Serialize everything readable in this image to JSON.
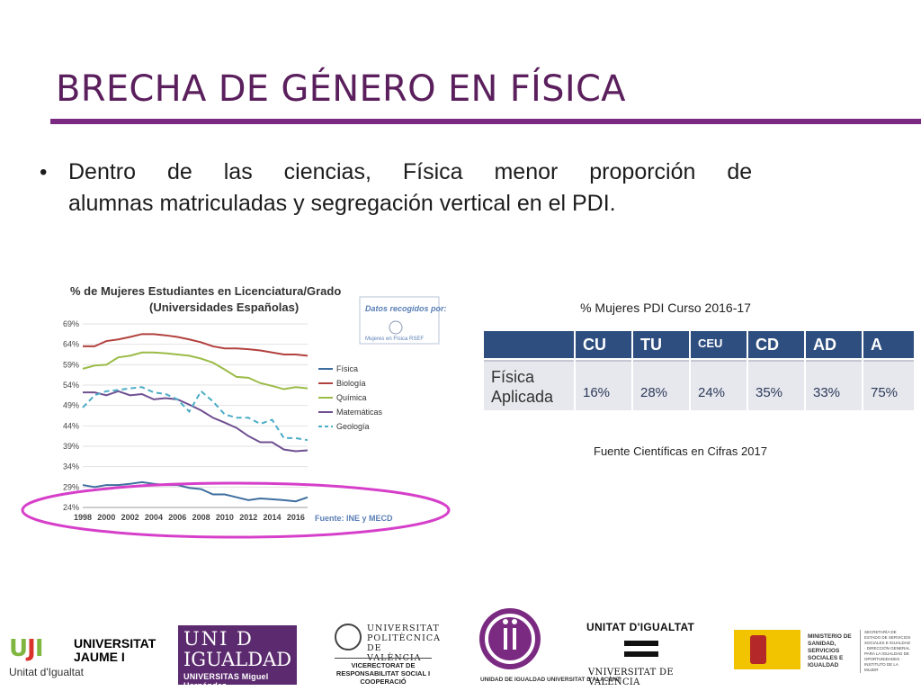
{
  "slide": {
    "title": "BRECHA DE GÉNERO EN FÍSICA",
    "bullet": {
      "symbol": "•",
      "line1": "Dentro de las ciencias, Física menor proporción de",
      "line2": "alumnas  matriculadas y segregación vertical en el PDI."
    }
  },
  "chart_data": {
    "type": "line",
    "title": "% de Mujeres Estudiantes en Licenciatura/Grado",
    "subtitle": "(Universidades Españolas)",
    "note_label": "Datos recogidos por:",
    "note_source": "Mujeres en Física RSEF",
    "source": "Fuente: INE y MECD",
    "ylim": [
      24,
      69
    ],
    "yticks": [
      "69%",
      "64%",
      "59%",
      "54%",
      "49%",
      "44%",
      "39%",
      "34%",
      "29%",
      "24%"
    ],
    "xticks": [
      "1998",
      "2000",
      "2002",
      "2004",
      "2006",
      "2008",
      "2010",
      "2012",
      "2014",
      "2016"
    ],
    "x": [
      1998,
      1999,
      2000,
      2001,
      2002,
      2003,
      2004,
      2005,
      2006,
      2007,
      2008,
      2009,
      2010,
      2011,
      2012,
      2013,
      2014,
      2015,
      2016,
      2017
    ],
    "legend_placement": "right",
    "series": [
      {
        "name": "Física",
        "color": "#3e6e9e",
        "dash": false,
        "values": [
          29.5,
          29.0,
          29.5,
          29.5,
          29.8,
          30.2,
          29.8,
          29.5,
          29.5,
          28.8,
          28.5,
          27.2,
          27.2,
          26.5,
          25.8,
          26.2,
          26.0,
          25.8,
          25.5,
          26.5
        ]
      },
      {
        "name": "Biología",
        "color": "#b2413e",
        "dash": false,
        "values": [
          63.5,
          63.5,
          64.8,
          65.2,
          65.8,
          66.5,
          66.5,
          66.2,
          65.8,
          65.2,
          64.5,
          63.5,
          63.0,
          63.0,
          62.8,
          62.5,
          62.0,
          61.5,
          61.5,
          61.2
        ]
      },
      {
        "name": "Química",
        "color": "#9bbb46",
        "dash": false,
        "values": [
          58.0,
          58.8,
          59.0,
          60.8,
          61.2,
          62.0,
          62.0,
          61.8,
          61.5,
          61.2,
          60.5,
          59.5,
          57.8,
          56.0,
          55.8,
          54.5,
          53.8,
          53.0,
          53.5,
          53.2
        ]
      },
      {
        "name": "Matemáticas",
        "color": "#6f4f91",
        "dash": false,
        "values": [
          52.2,
          52.2,
          51.5,
          52.5,
          51.5,
          51.8,
          50.5,
          50.8,
          50.5,
          49.2,
          47.8,
          46.0,
          44.8,
          43.5,
          41.5,
          40.0,
          40.0,
          38.2,
          37.8,
          38.0
        ]
      },
      {
        "name": "Geología",
        "color": "#4bacc6",
        "dash": true,
        "values": [
          48.5,
          51.5,
          52.5,
          52.8,
          53.2,
          53.5,
          52.2,
          51.8,
          50.5,
          47.5,
          52.5,
          50.0,
          46.8,
          46.0,
          46.0,
          44.5,
          45.5,
          41.0,
          41.0,
          40.5
        ]
      }
    ]
  },
  "table": {
    "caption": "% Mujeres PDI Curso 2016-17",
    "headers": [
      "",
      "CU",
      "TU",
      "CEU",
      "CD",
      "AD",
      "A"
    ],
    "row": {
      "label": "Física Aplicada",
      "values": [
        "16%",
        "28%",
        "24%",
        "35%",
        "33%",
        "75%"
      ]
    },
    "source": "Fuente Científicas en Cifras 2017"
  },
  "logos": {
    "uji": {
      "mark": "UJI",
      "name": "UNIVERSITAT JAUME I",
      "unit": "Unitat d'Igualtat",
      "color_u": "#7fb63f",
      "color_j": "#d9322b"
    },
    "umh": {
      "line1": "UNI D",
      "line2": "IGUALDAD",
      "sub": "UNIVERSITAS Miguel Hernández"
    },
    "upv": {
      "name": "UNIVERSITAT POLITÈCNICA DE VALÈNCIA",
      "sub": "VICERECTORAT DE RESPONSABILITAT SOCIAL I COOPERACIÓ"
    },
    "ua": {
      "sub": "UNIDAD DE IGUALDAD  UNIVERSITAT D'ALACANT",
      "color": "#7b2a82"
    },
    "uv": {
      "name": "UNITAT D'IGUALTAT",
      "uni": "VNIVERSITAT DE VALÈNCIA"
    },
    "ministry": {
      "name": "MINISTERIO DE SANIDAD, SERVICIOS SOCIALES E IGUALDAD",
      "right": "SECRETARÍA DE ESTADO DE SERVICIOS SOCIALES E IGUALDAD · DIRECCIÓN GENERAL PARA LA IGUALDAD DE OPORTUNIDADES · INSTITUTO DE LA MUJER"
    }
  },
  "colors": {
    "title": "#5a1f5c",
    "accent_rule": "#7b2a82",
    "table_header": "#2e4e80",
    "ellipse": "#d63fc9"
  }
}
